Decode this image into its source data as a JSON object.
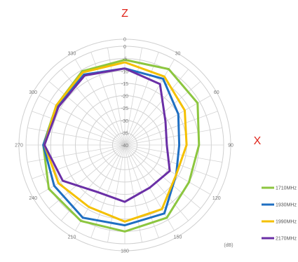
{
  "chart_data": {
    "type": "polar-line",
    "axis_letters": {
      "top": "Z",
      "right": "X"
    },
    "unit": "(dB)",
    "angle_ticks": [
      0,
      30,
      60,
      90,
      120,
      150,
      180,
      210,
      240,
      270,
      300,
      330
    ],
    "angle_tick_labels": [
      "0",
      "30",
      "60",
      "90",
      "120",
      "150",
      "180",
      "210",
      "240",
      "270",
      "300",
      "330"
    ],
    "radial_range": [
      -40,
      0
    ],
    "radial_ticks": [
      0,
      -5,
      -10,
      -15,
      -20,
      -25,
      -30,
      -35,
      -40
    ],
    "radial_tick_labels": [
      "0",
      "-5",
      "-10",
      "-15",
      "-20",
      "-25",
      "-30",
      "-35",
      "-40"
    ],
    "grid": true,
    "legend_position": "bottom-right",
    "angles": [
      0,
      30,
      60,
      90,
      120,
      150,
      180,
      210,
      240,
      270,
      300,
      330,
      360
    ],
    "series": [
      {
        "name": "1710MHz",
        "color": "#8cc63f",
        "values": [
          -5.5,
          -4.5,
          -6,
          -10,
          -10,
          -6,
          -5,
          -4.5,
          -4.5,
          -7,
          -8,
          -5.5,
          -5.5
        ]
      },
      {
        "name": "1930MHz",
        "color": "#1f6fc2",
        "values": [
          -9,
          -9,
          -15,
          -18,
          -16,
          -8,
          -7.5,
          -6,
          -7,
          -7,
          -8.5,
          -7,
          -9
        ]
      },
      {
        "name": "1990MHz",
        "color": "#f4c000",
        "values": [
          -6.5,
          -8,
          -12,
          -15,
          -16,
          -10,
          -9,
          -11,
          -9,
          -7.5,
          -8,
          -6,
          -6.5
        ]
      },
      {
        "name": "2170MHz",
        "color": "#6a2fa6",
        "values": [
          -9,
          -11.5,
          -21,
          -23,
          -19,
          -20,
          -17,
          -18,
          -11,
          -7.5,
          -9,
          -7.5,
          -9
        ]
      }
    ]
  }
}
